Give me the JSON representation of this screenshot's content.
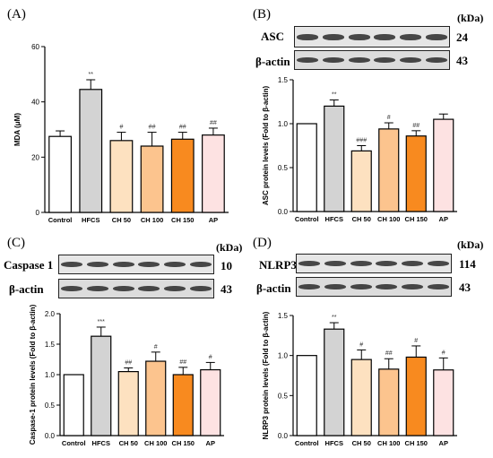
{
  "colors": {
    "bars": [
      "#ffffff",
      "#d3d3d3",
      "#fde1c0",
      "#fcc48e",
      "#f88a1f",
      "#fde2e2"
    ],
    "axis": "#000000",
    "errorbar": "#000000"
  },
  "panels": {
    "A": {
      "letter": "(A)"
    },
    "B": {
      "letter": "(B)",
      "kda": "(kDa)",
      "blots": [
        {
          "label": "ASC",
          "size": "24"
        },
        {
          "label": "β-actin",
          "size": "43"
        }
      ]
    },
    "C": {
      "letter": "(C)",
      "kda": "(kDa)",
      "blots": [
        {
          "label": "Caspase 1",
          "size": "10"
        },
        {
          "label": "β-actin",
          "size": "43"
        }
      ]
    },
    "D": {
      "letter": "(D)",
      "kda": "(kDa)",
      "blots": [
        {
          "label": "NLRP3",
          "size": "114"
        },
        {
          "label": "β-actin",
          "size": "43"
        }
      ]
    }
  },
  "chart_data": [
    {
      "id": "A",
      "type": "bar",
      "categories": [
        "Control",
        "HFCS",
        "CH 50",
        "CH 100",
        "CH 150",
        "AP"
      ],
      "values": [
        27.5,
        44.5,
        26.0,
        24.0,
        26.5,
        28.0
      ],
      "errors": [
        2.0,
        3.5,
        3.0,
        5.0,
        2.5,
        2.5
      ],
      "annotations": [
        "",
        "**",
        "#",
        "##",
        "##",
        "##"
      ],
      "ylabel": "MDA (μM)",
      "xlabel": "",
      "ylim": [
        0,
        60
      ],
      "yticks": [
        "0",
        "20",
        "40",
        "60"
      ]
    },
    {
      "id": "B",
      "type": "bar",
      "categories": [
        "Control",
        "HFCS",
        "CH 50",
        "CH 100",
        "CH 150",
        "AP"
      ],
      "values": [
        1.0,
        1.2,
        0.69,
        0.94,
        0.86,
        1.05
      ],
      "errors": [
        0.0,
        0.07,
        0.06,
        0.07,
        0.06,
        0.06
      ],
      "annotations": [
        "",
        "**",
        "###",
        "#",
        "##",
        ""
      ],
      "ylabel": "ASC protein levels (Fold to β-actin)",
      "xlabel": "",
      "ylim": [
        0,
        1.5
      ],
      "yticks": [
        "0.0",
        "0.5",
        "1.0",
        "1.5"
      ]
    },
    {
      "id": "C",
      "type": "bar",
      "categories": [
        "Control",
        "HFCS",
        "CH 50",
        "CH 100",
        "CH 150",
        "AP"
      ],
      "values": [
        1.0,
        1.63,
        1.05,
        1.22,
        1.0,
        1.08
      ],
      "errors": [
        0.0,
        0.15,
        0.06,
        0.15,
        0.12,
        0.12
      ],
      "annotations": [
        "",
        "***",
        "##",
        "#",
        "##",
        "#"
      ],
      "ylabel": "Caspase-1 protein levels (Fold to β-actin)",
      "xlabel": "",
      "ylim": [
        0,
        2.0
      ],
      "yticks": [
        "0.0",
        "0.5",
        "1.0",
        "1.5",
        "2.0"
      ]
    },
    {
      "id": "D",
      "type": "bar",
      "categories": [
        "Control",
        "HFCS",
        "CH 50",
        "CH 100",
        "CH 150",
        "AP"
      ],
      "values": [
        1.0,
        1.33,
        0.95,
        0.83,
        0.98,
        0.82
      ],
      "errors": [
        0.0,
        0.08,
        0.12,
        0.13,
        0.14,
        0.15
      ],
      "annotations": [
        "",
        "**",
        "#",
        "##",
        "#",
        "#"
      ],
      "ylabel": "NLRP3 protein levels (Fold to β-actin)",
      "xlabel": "",
      "ylim": [
        0,
        1.5
      ],
      "yticks": [
        "0.0",
        "0.5",
        "1.0",
        "1.5"
      ]
    }
  ]
}
